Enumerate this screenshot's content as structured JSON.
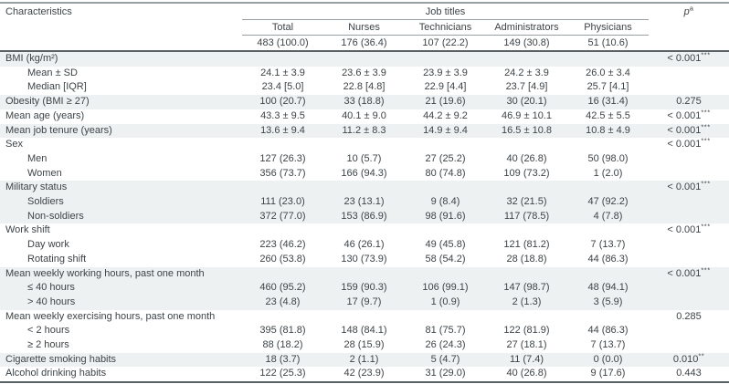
{
  "colors": {
    "row_shade": "#edf1f2",
    "rule_dark": "#5a6165",
    "rule_light": "#98a0a4",
    "text": "#3d4347"
  },
  "table": {
    "characteristics_header": "Characteristics",
    "group_header": "Job titles",
    "p_header": "p",
    "p_header_sup": "a",
    "columns": [
      "Total",
      "Nurses",
      "Technicians",
      "Administrators",
      "Physicians"
    ],
    "counts": [
      "483 (100.0)",
      "176 (36.4)",
      "107 (22.2)",
      "149 (30.8)",
      "51 (10.6)"
    ],
    "rows": [
      {
        "label": "BMI (kg/m²)",
        "indent": false,
        "shaded": true,
        "values": [
          "",
          "",
          "",
          "",
          ""
        ],
        "p": "< 0.001",
        "p_sup": "***"
      },
      {
        "label": "Mean ± SD",
        "indent": true,
        "shaded": false,
        "values": [
          "24.1 ± 3.9",
          "23.6 ± 3.9",
          "23.9 ± 3.9",
          "24.2 ± 3.9",
          "26.0 ± 3.4"
        ],
        "p": "",
        "p_sup": ""
      },
      {
        "label": "Median [IQR]",
        "indent": true,
        "shaded": false,
        "values": [
          "23.4 [5.0]",
          "22.8 [4.8]",
          "22.9 [4.4]",
          "23.7 [4.9]",
          "25.7 [4.1]"
        ],
        "p": "",
        "p_sup": ""
      },
      {
        "label": "Obesity (BMI ≥ 27)",
        "indent": false,
        "shaded": true,
        "values": [
          "100 (20.7)",
          "33 (18.8)",
          "21 (19.6)",
          "30 (20.1)",
          "16 (31.4)"
        ],
        "p": "0.275",
        "p_sup": ""
      },
      {
        "label": "Mean age (years)",
        "indent": false,
        "shaded": false,
        "values": [
          "43.3 ± 9.5",
          "40.1 ± 9.0",
          "44.2 ± 9.2",
          "46.9 ± 10.1",
          "42.5 ± 5.5"
        ],
        "p": "< 0.001",
        "p_sup": "***"
      },
      {
        "label": "Mean job tenure (years)",
        "indent": false,
        "shaded": true,
        "values": [
          "13.6 ± 9.4",
          "11.2 ± 8.3",
          "14.9 ± 9.4",
          "16.5 ± 10.8",
          "10.8 ± 4.9"
        ],
        "p": "< 0.001",
        "p_sup": "***"
      },
      {
        "label": "Sex",
        "indent": false,
        "shaded": false,
        "values": [
          "",
          "",
          "",
          "",
          ""
        ],
        "p": "< 0.001",
        "p_sup": "***"
      },
      {
        "label": "Men",
        "indent": true,
        "shaded": false,
        "values": [
          "127 (26.3)",
          "10 (5.7)",
          "27 (25.2)",
          "40 (26.8)",
          "50 (98.0)"
        ],
        "p": "",
        "p_sup": ""
      },
      {
        "label": "Women",
        "indent": true,
        "shaded": false,
        "values": [
          "356 (73.7)",
          "166 (94.3)",
          "80 (74.8)",
          "109 (73.2)",
          "1 (2.0)"
        ],
        "p": "",
        "p_sup": ""
      },
      {
        "label": "Military status",
        "indent": false,
        "shaded": true,
        "values": [
          "",
          "",
          "",
          "",
          ""
        ],
        "p": "< 0.001",
        "p_sup": "***"
      },
      {
        "label": "Soldiers",
        "indent": true,
        "shaded": true,
        "values": [
          "111 (23.0)",
          "23 (13.1)",
          "9 (8.4)",
          "32 (21.5)",
          "47 (92.2)"
        ],
        "p": "",
        "p_sup": ""
      },
      {
        "label": "Non-soldiers",
        "indent": true,
        "shaded": true,
        "values": [
          "372 (77.0)",
          "153 (86.9)",
          "98 (91.6)",
          "117 (78.5)",
          "4 (7.8)"
        ],
        "p": "",
        "p_sup": ""
      },
      {
        "label": "Work shift",
        "indent": false,
        "shaded": false,
        "values": [
          "",
          "",
          "",
          "",
          ""
        ],
        "p": "< 0.001",
        "p_sup": "***"
      },
      {
        "label": "Day work",
        "indent": true,
        "shaded": false,
        "values": [
          "223 (46.2)",
          "46 (26.1)",
          "49 (45.8)",
          "121 (81.2)",
          "7 (13.7)"
        ],
        "p": "",
        "p_sup": ""
      },
      {
        "label": "Rotating shift",
        "indent": true,
        "shaded": false,
        "values": [
          "260 (53.8)",
          "130 (73.9)",
          "58 (54.2)",
          "28 (18.8)",
          "44 (86.3)"
        ],
        "p": "",
        "p_sup": ""
      },
      {
        "label": "Mean weekly working hours, past one month",
        "indent": false,
        "shaded": true,
        "values": [
          "",
          "",
          "",
          "",
          ""
        ],
        "p": "< 0.001",
        "p_sup": "***"
      },
      {
        "label": "≤ 40 hours",
        "indent": true,
        "shaded": true,
        "values": [
          "460 (95.2)",
          "159 (90.3)",
          "106 (99.1)",
          "147 (98.7)",
          "48 (94.1)"
        ],
        "p": "",
        "p_sup": ""
      },
      {
        "label": "> 40 hours",
        "indent": true,
        "shaded": true,
        "values": [
          "23 (4.8)",
          "17 (9.7)",
          "1 (0.9)",
          "2 (1.3)",
          "3 (5.9)"
        ],
        "p": "",
        "p_sup": ""
      },
      {
        "label": "Mean weekly exercising hours, past one month",
        "indent": false,
        "shaded": false,
        "values": [
          "",
          "",
          "",
          "",
          ""
        ],
        "p": "0.285",
        "p_sup": ""
      },
      {
        "label": "< 2 hours",
        "indent": true,
        "shaded": false,
        "values": [
          "395 (81.8)",
          "148 (84.1)",
          "81 (75.7)",
          "122 (81.9)",
          "44 (86.3)"
        ],
        "p": "",
        "p_sup": ""
      },
      {
        "label": "≥ 2 hours",
        "indent": true,
        "shaded": false,
        "values": [
          "88 (18.2)",
          "28 (15.9)",
          "26 (24.3)",
          "27 (18.1)",
          "7 (13.7)"
        ],
        "p": "",
        "p_sup": ""
      },
      {
        "label": "Cigarette smoking habits",
        "indent": false,
        "shaded": true,
        "values": [
          "18 (3.7)",
          "2 (1.1)",
          "5 (4.7)",
          "11 (7.4)",
          "0 (0.0)"
        ],
        "p": "0.010",
        "p_sup": "**"
      },
      {
        "label": "Alcohol drinking habits",
        "indent": false,
        "shaded": false,
        "values": [
          "122 (25.3)",
          "42 (23.9)",
          "31 (29.0)",
          "40 (26.8)",
          "9 (17.6)"
        ],
        "p": "0.443",
        "p_sup": ""
      }
    ]
  }
}
